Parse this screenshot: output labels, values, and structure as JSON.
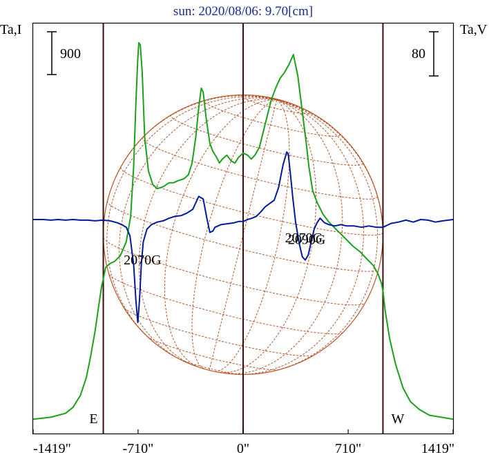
{
  "chart_data": {
    "type": "line",
    "title": "sun: 2020/08/06: 9.70[cm]",
    "left_axis_label": "Ta,I",
    "right_axis_label": "Ta,V",
    "left_scale_label": "900",
    "right_scale_label": "80",
    "x_ticks": [
      {
        "value": -1419,
        "label": "-1419\""
      },
      {
        "value": -710,
        "label": "-710\""
      },
      {
        "value": 0,
        "label": "0\""
      },
      {
        "value": 710,
        "label": "710\""
      },
      {
        "value": 1419,
        "label": "1419\""
      }
    ],
    "x_range": [
      -1419,
      1419
    ],
    "limb_markers": [
      {
        "x": -945,
        "label": "E"
      },
      {
        "x": 945,
        "label": "W"
      }
    ],
    "center_line_x": 0,
    "solar_disk": {
      "center_x": 0,
      "radius": 945,
      "color": "#b8562a"
    },
    "annotations": [
      {
        "text": "2070G",
        "x": 410,
        "y": 0.51
      },
      {
        "text": "2090G",
        "x": 430,
        "y": -0.38
      },
      {
        "text": "2070G",
        "x": -680,
        "y": -0.7
      }
    ],
    "series": [
      {
        "name": "",
        "role": "I",
        "color": "#1aa01a",
        "x": [
          -1419,
          -1300,
          -1200,
          -1150,
          -1100,
          -1060,
          -1030,
          -1000,
          -975,
          -955,
          -945,
          -930,
          -900,
          -870,
          -830,
          -790,
          -760,
          -740,
          -725,
          -712,
          -705,
          -695,
          -682,
          -665,
          -640,
          -610,
          -580,
          -540,
          -500,
          -470,
          -440,
          -400,
          -370,
          -345,
          -320,
          -300,
          -283,
          -270,
          -250,
          -225,
          -205,
          -180,
          -160,
          -140,
          -110,
          -80,
          -55,
          -30,
          0,
          30,
          55,
          80,
          110,
          150,
          190,
          220,
          250,
          280,
          310,
          340,
          370,
          400,
          425,
          445,
          470,
          500,
          540,
          580,
          620,
          660,
          700,
          740,
          790,
          840,
          880,
          910,
          935,
          945,
          960,
          990,
          1030,
          1080,
          1130,
          1190,
          1260,
          1340,
          1419
        ],
        "y": [
          0.02,
          0.03,
          0.05,
          0.08,
          0.14,
          0.23,
          0.34,
          0.47,
          0.6,
          0.7,
          0.73,
          0.79,
          0.81,
          0.82,
          0.85,
          0.92,
          1.05,
          1.3,
          1.62,
          1.85,
          1.93,
          1.92,
          1.78,
          1.45,
          1.28,
          1.21,
          1.19,
          1.2,
          1.22,
          1.22,
          1.23,
          1.24,
          1.26,
          1.32,
          1.45,
          1.6,
          1.7,
          1.68,
          1.55,
          1.42,
          1.38,
          1.35,
          1.32,
          1.34,
          1.36,
          1.33,
          1.32,
          1.35,
          1.37,
          1.36,
          1.34,
          1.36,
          1.4,
          1.52,
          1.64,
          1.7,
          1.75,
          1.78,
          1.82,
          1.87,
          1.76,
          1.58,
          1.43,
          1.3,
          1.18,
          1.12,
          1.06,
          1.02,
          0.99,
          0.96,
          0.93,
          0.9,
          0.87,
          0.83,
          0.8,
          0.76,
          0.71,
          0.67,
          0.57,
          0.43,
          0.3,
          0.18,
          0.11,
          0.07,
          0.04,
          0.03,
          0.02
        ]
      },
      {
        "name": "",
        "role": "V",
        "color": "#001a9a",
        "x": [
          -1419,
          -1350,
          -1300,
          -1250,
          -1200,
          -1150,
          -1100,
          -1050,
          -1000,
          -950,
          -900,
          -850,
          -820,
          -790,
          -765,
          -740,
          -725,
          -712,
          -700,
          -688,
          -675,
          -650,
          -620,
          -580,
          -540,
          -500,
          -460,
          -420,
          -380,
          -340,
          -300,
          -270,
          -245,
          -225,
          -205,
          -190,
          -170,
          -150,
          -120,
          -90,
          -60,
          -30,
          0,
          30,
          60,
          90,
          120,
          150,
          180,
          210,
          240,
          270,
          295,
          305,
          318,
          335,
          355,
          380,
          400,
          420,
          440,
          460,
          480,
          500,
          520,
          550,
          580,
          620,
          660,
          700,
          750,
          800,
          850,
          900,
          945,
          1000,
          1050,
          1100,
          1150,
          1200,
          1250,
          1300,
          1350,
          1419
        ],
        "y": [
          0.0,
          0.0,
          -0.01,
          0.0,
          -0.01,
          0.0,
          -0.01,
          -0.01,
          -0.02,
          -0.01,
          -0.02,
          -0.05,
          -0.08,
          -0.12,
          -0.25,
          -0.7,
          -1.25,
          -1.6,
          -1.25,
          -0.7,
          -0.35,
          -0.15,
          -0.08,
          -0.04,
          -0.02,
          0.02,
          0.05,
          0.06,
          0.1,
          0.16,
          0.36,
          0.32,
          0.02,
          -0.2,
          -0.18,
          -0.12,
          -0.1,
          -0.08,
          -0.07,
          -0.06,
          -0.05,
          -0.03,
          -0.03,
          0.0,
          0.02,
          0.05,
          0.12,
          0.2,
          0.25,
          0.3,
          0.5,
          0.85,
          1.05,
          1.02,
          0.75,
          0.35,
          -0.05,
          -0.38,
          -0.58,
          -0.63,
          -0.55,
          -0.35,
          -0.15,
          -0.05,
          0.02,
          -0.05,
          -0.08,
          -0.1,
          -0.08,
          -0.1,
          -0.1,
          -0.12,
          -0.1,
          -0.12,
          -0.12,
          -0.06,
          -0.04,
          -0.01,
          -0.04,
          0.0,
          -0.01,
          -0.04,
          -0.02,
          0.0
        ]
      }
    ]
  }
}
